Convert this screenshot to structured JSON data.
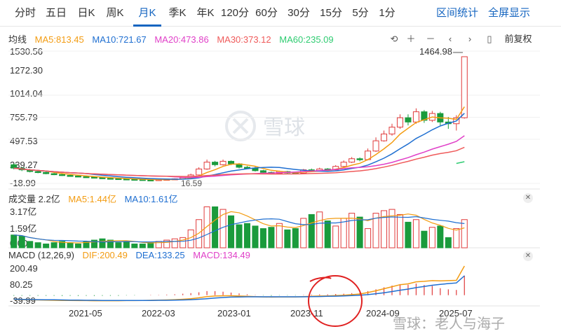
{
  "tabs": [
    "分时",
    "五日",
    "日K",
    "周K",
    "月K",
    "季K",
    "年K",
    "120分",
    "60分",
    "30分",
    "15分",
    "5分",
    "1分"
  ],
  "active_tab": "月K",
  "right_tabs": [
    "区间统计",
    "全屏显示"
  ],
  "price_legend": {
    "label": "均线",
    "ma5": "MA5:813.45",
    "ma10": "MA10:721.67",
    "ma20": "MA20:473.86",
    "ma30": "MA30:373.12",
    "ma60": "MA60:235.09"
  },
  "controls": {
    "fq": "前复权"
  },
  "price_axis": [
    "1530.56",
    "1272.30",
    "1014.04",
    "755.79",
    "497.53",
    "239.27",
    "-18.99"
  ],
  "max_label": "1464.98",
  "min_label": "16.59",
  "volume_legend": {
    "label": "成交量 2.2亿",
    "ma5": "MA5:1.44亿",
    "ma10": "MA10:1.61亿"
  },
  "volume_axis": [
    "3.17亿",
    "1.59亿",
    "0.00"
  ],
  "macd_legend": {
    "label": "MACD (12,26,9)",
    "dif": "DIF:200.49",
    "dea": "DEA:133.25",
    "macd": "MACD:134.49"
  },
  "macd_axis": [
    "200.49",
    "80.25",
    "-39.99"
  ],
  "x_labels": [
    "2021-05",
    "2022-03",
    "2023-01",
    "2023-11",
    "2024-09",
    "2025-07"
  ],
  "watermark": "雪球",
  "watermark2": "雪球：老人与海子",
  "colors": {
    "up": "#e03b3b",
    "down": "#1a9b3c",
    "ma5": "#f39c12",
    "ma10": "#1f6fd1",
    "ma20": "#e040c8",
    "ma30": "#ef5a5a",
    "ma60": "#2ecc71",
    "accent": "#1565c0"
  },
  "chart_data": {
    "type": "candlestick",
    "period": "monthly",
    "price_range": [
      -18.99,
      1530.56
    ],
    "candles": [
      {
        "o": 200,
        "c": 160,
        "h": 215,
        "l": 145
      },
      {
        "o": 160,
        "c": 140,
        "h": 170,
        "l": 125
      },
      {
        "o": 140,
        "c": 120,
        "h": 150,
        "l": 110
      },
      {
        "o": 120,
        "c": 110,
        "h": 130,
        "l": 100
      },
      {
        "o": 110,
        "c": 95,
        "h": 118,
        "l": 88
      },
      {
        "o": 95,
        "c": 85,
        "h": 104,
        "l": 78
      },
      {
        "o": 85,
        "c": 75,
        "h": 92,
        "l": 68
      },
      {
        "o": 75,
        "c": 68,
        "h": 82,
        "l": 60
      },
      {
        "o": 68,
        "c": 60,
        "h": 74,
        "l": 55
      },
      {
        "o": 60,
        "c": 55,
        "h": 66,
        "l": 48
      },
      {
        "o": 55,
        "c": 48,
        "h": 62,
        "l": 42
      },
      {
        "o": 48,
        "c": 42,
        "h": 54,
        "l": 36
      },
      {
        "o": 42,
        "c": 38,
        "h": 48,
        "l": 32
      },
      {
        "o": 38,
        "c": 34,
        "h": 44,
        "l": 28
      },
      {
        "o": 34,
        "c": 30,
        "h": 39,
        "l": 25
      },
      {
        "o": 30,
        "c": 27,
        "h": 35,
        "l": 22
      },
      {
        "o": 27,
        "c": 22,
        "h": 31,
        "l": 18
      },
      {
        "o": 22,
        "c": 20,
        "h": 27,
        "l": 16.59
      },
      {
        "o": 20,
        "c": 26,
        "h": 30,
        "l": 18
      },
      {
        "o": 26,
        "c": 30,
        "h": 34,
        "l": 22
      },
      {
        "o": 30,
        "c": 35,
        "h": 40,
        "l": 26
      },
      {
        "o": 35,
        "c": 48,
        "h": 55,
        "l": 30
      },
      {
        "o": 48,
        "c": 80,
        "h": 95,
        "l": 45
      },
      {
        "o": 80,
        "c": 150,
        "h": 170,
        "l": 75
      },
      {
        "o": 150,
        "c": 230,
        "h": 260,
        "l": 140
      },
      {
        "o": 230,
        "c": 200,
        "h": 245,
        "l": 180
      },
      {
        "o": 200,
        "c": 240,
        "h": 260,
        "l": 190
      },
      {
        "o": 240,
        "c": 210,
        "h": 250,
        "l": 195
      },
      {
        "o": 210,
        "c": 170,
        "h": 220,
        "l": 155
      },
      {
        "o": 170,
        "c": 160,
        "h": 185,
        "l": 150
      },
      {
        "o": 160,
        "c": 130,
        "h": 175,
        "l": 120
      },
      {
        "o": 130,
        "c": 110,
        "h": 140,
        "l": 100
      },
      {
        "o": 110,
        "c": 100,
        "h": 120,
        "l": 90
      },
      {
        "o": 100,
        "c": 120,
        "h": 130,
        "l": 92
      },
      {
        "o": 120,
        "c": 105,
        "h": 128,
        "l": 95
      },
      {
        "o": 105,
        "c": 100,
        "h": 115,
        "l": 90
      },
      {
        "o": 100,
        "c": 140,
        "h": 150,
        "l": 95
      },
      {
        "o": 140,
        "c": 130,
        "h": 155,
        "l": 120
      },
      {
        "o": 130,
        "c": 150,
        "h": 165,
        "l": 125
      },
      {
        "o": 150,
        "c": 140,
        "h": 160,
        "l": 130
      },
      {
        "o": 140,
        "c": 180,
        "h": 195,
        "l": 135
      },
      {
        "o": 180,
        "c": 230,
        "h": 250,
        "l": 170
      },
      {
        "o": 230,
        "c": 270,
        "h": 290,
        "l": 220
      },
      {
        "o": 270,
        "c": 260,
        "h": 285,
        "l": 240
      },
      {
        "o": 260,
        "c": 360,
        "h": 390,
        "l": 250
      },
      {
        "o": 360,
        "c": 480,
        "h": 520,
        "l": 350
      },
      {
        "o": 480,
        "c": 560,
        "h": 600,
        "l": 470
      },
      {
        "o": 560,
        "c": 640,
        "h": 680,
        "l": 540
      },
      {
        "o": 640,
        "c": 750,
        "h": 790,
        "l": 620
      },
      {
        "o": 750,
        "c": 700,
        "h": 790,
        "l": 660
      },
      {
        "o": 700,
        "c": 820,
        "h": 860,
        "l": 680
      },
      {
        "o": 820,
        "c": 720,
        "h": 840,
        "l": 690
      },
      {
        "o": 720,
        "c": 800,
        "h": 830,
        "l": 700
      },
      {
        "o": 800,
        "c": 700,
        "h": 820,
        "l": 660
      },
      {
        "o": 700,
        "c": 680,
        "h": 760,
        "l": 620
      },
      {
        "o": 680,
        "c": 750,
        "h": 780,
        "l": 600
      },
      {
        "o": 750,
        "c": 1464.98,
        "h": 1464.98,
        "l": 740
      }
    ],
    "volume_range": [
      0,
      3.17
    ],
    "volumes": [
      1.0,
      0.9,
      0.5,
      0.4,
      0.3,
      0.4,
      0.5,
      0.4,
      0.3,
      0.5,
      0.6,
      0.7,
      0.6,
      0.4,
      0.5,
      0.3,
      0.3,
      0.4,
      0.5,
      0.6,
      0.7,
      0.8,
      1.4,
      2.2,
      3.2,
      3.2,
      3.0,
      2.5,
      1.8,
      1.9,
      1.7,
      1.5,
      1.6,
      1.9,
      1.4,
      1.5,
      2.3,
      2.6,
      2.8,
      2.1,
      1.7,
      2.3,
      2.7,
      2.4,
      1.5,
      2.7,
      2.9,
      3.0,
      2.6,
      2.0,
      2.2,
      1.3,
      1.6,
      1.7,
      0.8,
      1.5,
      2.2
    ],
    "macd_range": [
      -39.99,
      200.49
    ],
    "dif": [
      -30,
      -31,
      -32,
      -33,
      -34,
      -35,
      -36,
      -36,
      -37,
      -37,
      -38,
      -38,
      -38,
      -38,
      -37,
      -37,
      -36,
      -35,
      -34,
      -33,
      -31,
      -28,
      -24,
      -18,
      -10,
      -6,
      -4,
      -4,
      -6,
      -8,
      -10,
      -12,
      -13,
      -12,
      -12,
      -12,
      -10,
      -8,
      -6,
      -5,
      -3,
      0,
      4,
      8,
      18,
      30,
      44,
      58,
      72,
      78,
      92,
      95,
      100,
      98,
      100,
      102,
      200.49
    ],
    "dea": [
      -28,
      -29,
      -30,
      -31,
      -32,
      -32,
      -33,
      -34,
      -34,
      -35,
      -35,
      -36,
      -36,
      -36,
      -36,
      -36,
      -36,
      -36,
      -35,
      -35,
      -34,
      -33,
      -31,
      -28,
      -24,
      -20,
      -16,
      -13,
      -12,
      -11,
      -11,
      -11,
      -11,
      -11,
      -11,
      -11,
      -11,
      -10,
      -9,
      -8,
      -7,
      -5,
      -3,
      0,
      4,
      10,
      17,
      25,
      34,
      42,
      52,
      60,
      68,
      74,
      80,
      84,
      133.25
    ],
    "macd_hist": [
      -4,
      -4,
      -4,
      -4,
      -4,
      -4,
      -5,
      -4,
      -5,
      -4,
      -5,
      -4,
      -4,
      -4,
      -2,
      -2,
      0,
      2,
      2,
      4,
      6,
      10,
      14,
      20,
      28,
      28,
      24,
      18,
      12,
      6,
      2,
      -2,
      -4,
      -2,
      -2,
      -2,
      2,
      4,
      6,
      6,
      8,
      10,
      14,
      16,
      28,
      40,
      54,
      66,
      76,
      72,
      80,
      70,
      64,
      48,
      40,
      36,
      134.49
    ],
    "x_labels": [
      "2021-05",
      "2022-03",
      "2023-01",
      "2023-11",
      "2024-09",
      "2025-07"
    ]
  }
}
